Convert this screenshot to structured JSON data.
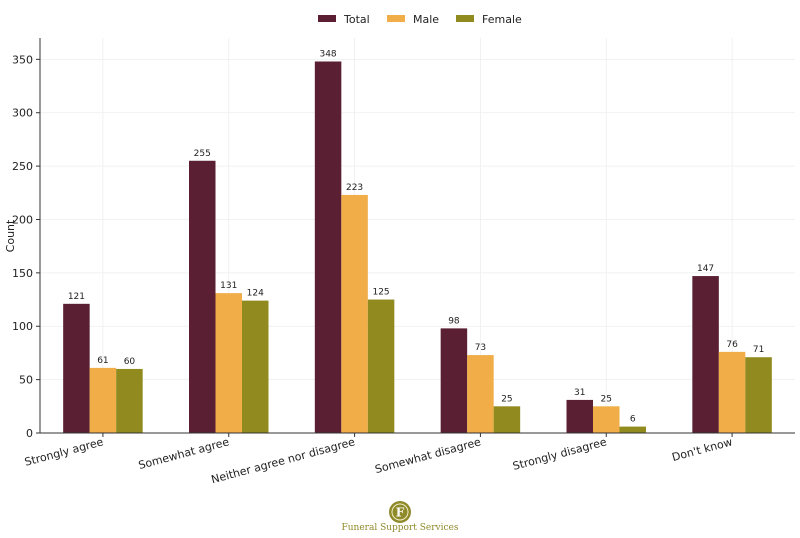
{
  "chart_data": {
    "type": "bar",
    "categories": [
      "Strongly agree",
      "Somewhat agree",
      "Neither agree nor disagree",
      "Somewhat disagree",
      "Strongly disagree",
      "Don't know"
    ],
    "series": [
      {
        "name": "Total",
        "color": "#5a1f33",
        "values": [
          121,
          255,
          348,
          98,
          31,
          147
        ]
      },
      {
        "name": "Male",
        "color": "#f0ad48",
        "values": [
          61,
          131,
          223,
          73,
          25,
          76
        ]
      },
      {
        "name": "Female",
        "color": "#918a1e",
        "values": [
          60,
          124,
          125,
          25,
          6,
          71
        ]
      }
    ],
    "ylabel": "Count",
    "xlabel": "",
    "ylim": [
      0,
      370
    ],
    "yticks": [
      0,
      50,
      100,
      150,
      200,
      250,
      300,
      350
    ],
    "grid": true,
    "legend": "top-center",
    "data_labels": true
  },
  "brand": {
    "monogram": "F",
    "name": "Funeral Support Services",
    "color": "#8f8a2a"
  }
}
